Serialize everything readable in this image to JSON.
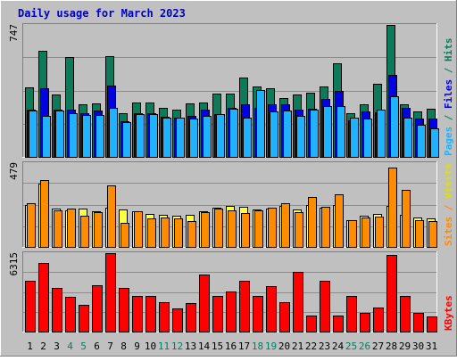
{
  "chart_data": {
    "type": "bar",
    "title": "Daily usage for March 2023",
    "categories": [
      "1",
      "2",
      "3",
      "4",
      "5",
      "6",
      "7",
      "8",
      "9",
      "10",
      "11",
      "12",
      "13",
      "14",
      "15",
      "16",
      "17",
      "18",
      "19",
      "20",
      "21",
      "22",
      "23",
      "24",
      "25",
      "26",
      "27",
      "28",
      "29",
      "30",
      "31"
    ],
    "weekend_days": [
      "4",
      "5",
      "11",
      "12",
      "18",
      "19",
      "25",
      "26"
    ],
    "panels": [
      {
        "id": "hits",
        "max_label": "747",
        "ymax": 747,
        "grid": true,
        "series": [
          {
            "name": "Hits",
            "color": "#0e7a5a",
            "values": [
              395,
              600,
              355,
              565,
              300,
              305,
              570,
              245,
              310,
              310,
              280,
              270,
              305,
              310,
              360,
              360,
              450,
              400,
              390,
              335,
              355,
              365,
              400,
              530,
              245,
              300,
              415,
              747,
              300,
              255,
              275
            ]
          },
          {
            "name": "Files",
            "color": "#0000e0",
            "values": [
              265,
              390,
              265,
              265,
              245,
              260,
              405,
              200,
              245,
              245,
              225,
              220,
              230,
              265,
              240,
              280,
              300,
              280,
              300,
              300,
              265,
              275,
              330,
              375,
              205,
              255,
              250,
              465,
              280,
              215,
              215
            ]
          },
          {
            "name": "Pages",
            "color": "#1fb3ff",
            "values": [
              260,
              230,
              260,
              245,
              235,
              235,
              280,
              195,
              240,
              240,
              220,
              220,
              215,
              230,
              240,
              275,
              220,
              380,
              255,
              260,
              230,
              265,
              290,
              290,
              220,
              215,
              270,
              345,
              220,
              180,
              160
            ]
          }
        ],
        "axis_labels": [
          {
            "text": "Pages",
            "color": "#1fb3ff"
          },
          {
            "text": " / ",
            "color": "#0e7a5a"
          },
          {
            "text": "Files",
            "color": "#0000e0"
          },
          {
            "text": " / ",
            "color": "#0e7a5a"
          },
          {
            "text": "Hits",
            "color": "#0e7a5a"
          }
        ]
      },
      {
        "id": "visits",
        "max_label": "479",
        "ymax": 479,
        "grid": true,
        "series": [
          {
            "name": "Visits",
            "color": "#ffff44",
            "values": [
              240,
              360,
              220,
              210,
              220,
              205,
              225,
              215,
              205,
              190,
              185,
              180,
              185,
              205,
              225,
              235,
              230,
              215,
              220,
              235,
              215,
              240,
              225,
              240,
              155,
              180,
              190,
              235,
              185,
              170,
              165
            ]
          },
          {
            "name": "Sites",
            "color": "#ff8c00",
            "values": [
              250,
              380,
              210,
              220,
              180,
              200,
              350,
              140,
              205,
              165,
              170,
              165,
              150,
              200,
              220,
              210,
              195,
              210,
              225,
              250,
              200,
              285,
              230,
              300,
              155,
              170,
              175,
              455,
              325,
              155,
              150
            ]
          }
        ],
        "axis_labels": [
          {
            "text": "Sites",
            "color": "#ff8c00"
          },
          {
            "text": " / ",
            "color": "#ff8c00"
          },
          {
            "text": "Visits",
            "color": "#e0e000"
          }
        ]
      },
      {
        "id": "kbytes",
        "max_label": "6315",
        "ymax": 6315,
        "grid": true,
        "series": [
          {
            "name": "KBytes",
            "color": "#ff0000",
            "values": [
              4100,
              5500,
              3550,
              2800,
              2150,
              3750,
              6315,
              3500,
              2850,
              2850,
              2350,
              1900,
              2300,
              4600,
              2850,
              3200,
              4100,
              2850,
              3650,
              2350,
              4800,
              1300,
              4100,
              1300,
              2850,
              1500,
              1950,
              6200,
              2850,
              1500,
              1200
            ]
          }
        ],
        "axis_labels": [
          {
            "text": "KBytes",
            "color": "#ff0000"
          }
        ]
      }
    ]
  }
}
